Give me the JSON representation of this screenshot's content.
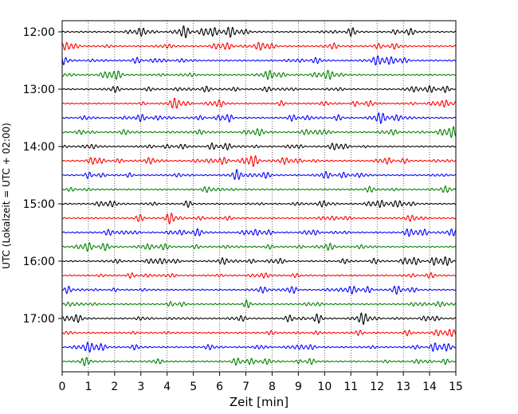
{
  "chart_data": {
    "type": "line",
    "title": "",
    "xlabel": "Zeit  [min]",
    "ylabel": "UTC (Lokalzeit = UTC + 02:00)",
    "xlim": [
      0,
      15
    ],
    "x_ticks": [
      "0",
      "1",
      "2",
      "3",
      "4",
      "5",
      "6",
      "7",
      "8",
      "9",
      "10",
      "11",
      "12",
      "13",
      "14",
      "15"
    ],
    "y_ticks": [
      "12:00",
      "13:00",
      "14:00",
      "15:00",
      "16:00",
      "17:00"
    ],
    "grid": "vertical dotted lines at each minute",
    "trace_colors": [
      "#000000",
      "#ff0000",
      "#0000ff",
      "#008000"
    ],
    "trace_interval_minutes": 15,
    "traces": [
      {
        "start": "12:00",
        "color": "#000000"
      },
      {
        "start": "12:15",
        "color": "#ff0000"
      },
      {
        "start": "12:30",
        "color": "#0000ff"
      },
      {
        "start": "12:45",
        "color": "#008000"
      },
      {
        "start": "13:00",
        "color": "#000000"
      },
      {
        "start": "13:15",
        "color": "#ff0000"
      },
      {
        "start": "13:30",
        "color": "#0000ff"
      },
      {
        "start": "13:45",
        "color": "#008000"
      },
      {
        "start": "14:00",
        "color": "#000000"
      },
      {
        "start": "14:15",
        "color": "#ff0000"
      },
      {
        "start": "14:30",
        "color": "#0000ff"
      },
      {
        "start": "14:45",
        "color": "#008000"
      },
      {
        "start": "15:00",
        "color": "#000000"
      },
      {
        "start": "15:15",
        "color": "#ff0000"
      },
      {
        "start": "15:30",
        "color": "#0000ff"
      },
      {
        "start": "15:45",
        "color": "#008000"
      },
      {
        "start": "16:00",
        "color": "#000000"
      },
      {
        "start": "16:15",
        "color": "#ff0000"
      },
      {
        "start": "16:30",
        "color": "#0000ff"
      },
      {
        "start": "16:45",
        "color": "#008000"
      },
      {
        "start": "17:00",
        "color": "#000000"
      },
      {
        "start": "17:15",
        "color": "#ff0000"
      },
      {
        "start": "17:30",
        "color": "#0000ff"
      },
      {
        "start": "17:45",
        "color": "#008000"
      }
    ]
  }
}
